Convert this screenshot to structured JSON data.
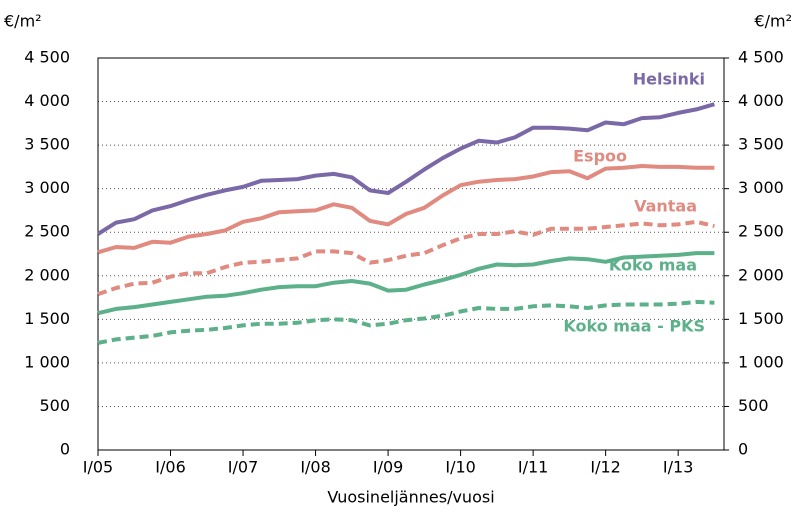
{
  "chart_data": {
    "type": "line",
    "y_label": "€/m²",
    "y2_label": "€/m²",
    "x_label": "Vuosineljännes/vuosi",
    "categories": [
      "I/05",
      null,
      null,
      null,
      "I/06",
      null,
      null,
      null,
      "I/07",
      null,
      null,
      null,
      "I/08",
      null,
      null,
      null,
      "I/09",
      null,
      null,
      null,
      "I/10",
      null,
      null,
      null,
      "I/11",
      null,
      null,
      null,
      "I/12",
      null,
      null,
      null,
      "I/13",
      null,
      null
    ],
    "series": [
      {
        "name": "Helsinki",
        "color": "#7b68a6",
        "dashed": false,
        "values": [
          2480,
          2610,
          2650,
          2750,
          2800,
          2870,
          2930,
          2980,
          3020,
          3090,
          3100,
          3110,
          3150,
          3170,
          3130,
          2980,
          2950,
          3080,
          3220,
          3350,
          3460,
          3550,
          3530,
          3590,
          3700,
          3700,
          3690,
          3670,
          3760,
          3740,
          3810,
          3820,
          3870,
          3910,
          3970
        ]
      },
      {
        "name": "Espoo",
        "color": "#e08a80",
        "dashed": false,
        "values": [
          2270,
          2330,
          2320,
          2390,
          2380,
          2450,
          2480,
          2520,
          2620,
          2660,
          2730,
          2740,
          2750,
          2820,
          2780,
          2630,
          2590,
          2710,
          2780,
          2920,
          3040,
          3080,
          3100,
          3110,
          3140,
          3190,
          3200,
          3120,
          3230,
          3240,
          3260,
          3250,
          3250,
          3240,
          3240
        ]
      },
      {
        "name": "Vantaa",
        "color": "#e08a80",
        "dashed": true,
        "values": [
          1790,
          1860,
          1910,
          1920,
          1990,
          2030,
          2030,
          2100,
          2150,
          2160,
          2180,
          2200,
          2280,
          2280,
          2260,
          2150,
          2180,
          2230,
          2260,
          2350,
          2430,
          2480,
          2480,
          2510,
          2470,
          2540,
          2540,
          2540,
          2560,
          2580,
          2600,
          2580,
          2590,
          2620,
          2570
        ]
      },
      {
        "name": "Koko maa",
        "color": "#5cb08a",
        "dashed": false,
        "values": [
          1570,
          1620,
          1640,
          1670,
          1700,
          1730,
          1760,
          1770,
          1800,
          1840,
          1870,
          1880,
          1880,
          1920,
          1940,
          1910,
          1830,
          1840,
          1900,
          1950,
          2010,
          2080,
          2130,
          2120,
          2130,
          2170,
          2200,
          2190,
          2160,
          2210,
          2220,
          2230,
          2240,
          2260,
          2260
        ]
      },
      {
        "name": "Koko maa - PKS",
        "color": "#5cb08a",
        "dashed": true,
        "values": [
          1230,
          1270,
          1290,
          1310,
          1350,
          1370,
          1380,
          1400,
          1430,
          1450,
          1450,
          1460,
          1490,
          1500,
          1490,
          1430,
          1450,
          1490,
          1510,
          1540,
          1590,
          1630,
          1620,
          1620,
          1650,
          1660,
          1650,
          1630,
          1660,
          1670,
          1670,
          1670,
          1680,
          1700,
          1690
        ]
      }
    ],
    "ylim": [
      0,
      4500
    ],
    "yticks": [
      0,
      500,
      {
        "value": 1000,
        "label": "1 000"
      },
      {
        "value": 1500,
        "label": "1 500"
      },
      {
        "value": 2000,
        "label": "2 000"
      },
      {
        "value": 2500,
        "label": "2 500"
      },
      {
        "value": 3000,
        "label": "3 000"
      },
      {
        "value": 3500,
        "label": "3 500"
      },
      {
        "value": 4000,
        "label": "4 000"
      },
      {
        "value": 4500,
        "label": "4 500"
      }
    ],
    "y2lim": [
      0,
      4500
    ],
    "y2ticks": [
      0,
      500,
      {
        "value": 1000,
        "label": "1 000"
      },
      {
        "value": 1500,
        "label": "1 500"
      },
      {
        "value": 2000,
        "label": "2 000"
      },
      {
        "value": 2500,
        "label": "2 500"
      },
      {
        "value": 3000,
        "label": "3 000"
      },
      {
        "value": 3500,
        "label": "3 500"
      },
      {
        "value": 4000,
        "label": "4 000"
      },
      {
        "value": 4500,
        "label": "4 500"
      }
    ],
    "grid": true
  }
}
